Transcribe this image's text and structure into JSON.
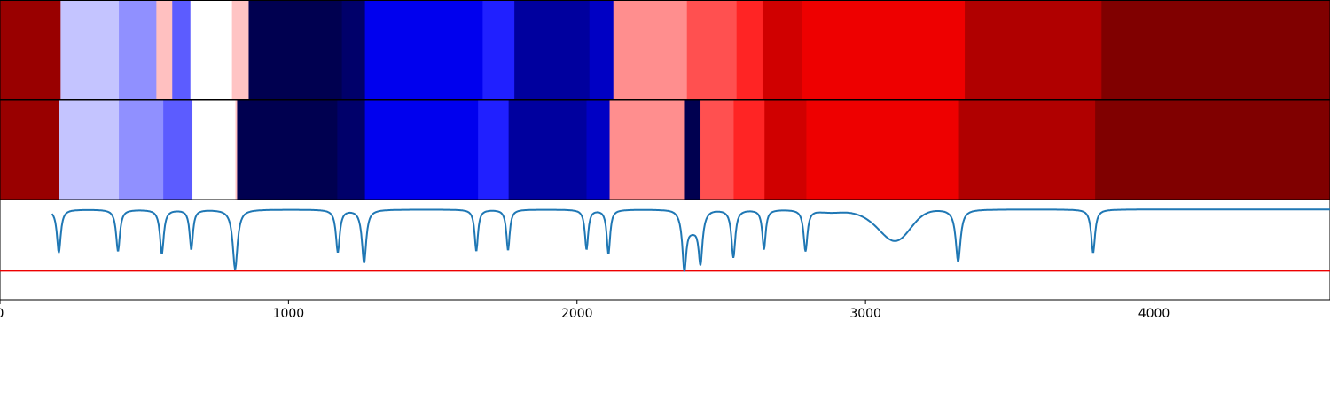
{
  "chart_data": {
    "type": "heatmap",
    "description_free": true,
    "x_range": [
      0,
      4610
    ],
    "xticks": [
      {
        "value": 0,
        "label": "0"
      },
      {
        "value": 1000,
        "label": "1000"
      },
      {
        "value": 2000,
        "label": "2000"
      },
      {
        "value": 3000,
        "label": "3000"
      },
      {
        "value": 4000,
        "label": "4000"
      }
    ],
    "rows": [
      {
        "name": "segments-top",
        "segments": [
          {
            "start": 0,
            "end": 210,
            "color": "#990000"
          },
          {
            "start": 210,
            "end": 412,
            "color": "#c4c4ff"
          },
          {
            "start": 412,
            "end": 542,
            "color": "#9090ff"
          },
          {
            "start": 542,
            "end": 597,
            "color": "#ffc0c0"
          },
          {
            "start": 597,
            "end": 660,
            "color": "#5c5cff"
          },
          {
            "start": 660,
            "end": 804,
            "color": "#ffffff"
          },
          {
            "start": 804,
            "end": 862,
            "color": "#ffc4c4"
          },
          {
            "start": 862,
            "end": 1185,
            "color": "#000050"
          },
          {
            "start": 1185,
            "end": 1265,
            "color": "#00006a"
          },
          {
            "start": 1265,
            "end": 1673,
            "color": "#0000ee"
          },
          {
            "start": 1673,
            "end": 1783,
            "color": "#2020ff"
          },
          {
            "start": 1783,
            "end": 2043,
            "color": "#00009e"
          },
          {
            "start": 2043,
            "end": 2126,
            "color": "#0000c4"
          },
          {
            "start": 2126,
            "end": 2381,
            "color": "#ff8e8e"
          },
          {
            "start": 2381,
            "end": 2553,
            "color": "#ff5050"
          },
          {
            "start": 2553,
            "end": 2643,
            "color": "#ff2424"
          },
          {
            "start": 2643,
            "end": 2781,
            "color": "#d00000"
          },
          {
            "start": 2781,
            "end": 3344,
            "color": "#ee0000"
          },
          {
            "start": 3344,
            "end": 3818,
            "color": "#b00000"
          },
          {
            "start": 3818,
            "end": 4610,
            "color": "#800000"
          }
        ]
      },
      {
        "name": "segments-bottom",
        "segments": [
          {
            "start": 0,
            "end": 204,
            "color": "#990000"
          },
          {
            "start": 204,
            "end": 412,
            "color": "#c4c4ff"
          },
          {
            "start": 412,
            "end": 566,
            "color": "#9090ff"
          },
          {
            "start": 566,
            "end": 667,
            "color": "#5c5cff"
          },
          {
            "start": 667,
            "end": 816,
            "color": "#ffffff"
          },
          {
            "start": 816,
            "end": 822,
            "color": "#ffc4c4"
          },
          {
            "start": 822,
            "end": 1169,
            "color": "#000050"
          },
          {
            "start": 1169,
            "end": 1265,
            "color": "#00006a"
          },
          {
            "start": 1265,
            "end": 1657,
            "color": "#0000ee"
          },
          {
            "start": 1657,
            "end": 1763,
            "color": "#2020ff"
          },
          {
            "start": 1763,
            "end": 2033,
            "color": "#00009e"
          },
          {
            "start": 2033,
            "end": 2113,
            "color": "#0000c4"
          },
          {
            "start": 2113,
            "end": 2371,
            "color": "#ff8e8e"
          },
          {
            "start": 2371,
            "end": 2428,
            "color": "#000050"
          },
          {
            "start": 2428,
            "end": 2543,
            "color": "#ff5050"
          },
          {
            "start": 2543,
            "end": 2650,
            "color": "#ff2424"
          },
          {
            "start": 2650,
            "end": 2795,
            "color": "#d00000"
          },
          {
            "start": 2795,
            "end": 3324,
            "color": "#ee0000"
          },
          {
            "start": 3324,
            "end": 3796,
            "color": "#b00000"
          },
          {
            "start": 3796,
            "end": 4610,
            "color": "#800000"
          }
        ]
      }
    ],
    "signal": {
      "baseline": 0,
      "y_range": [
        -1.0,
        0.1
      ],
      "threshold": -0.68,
      "threshold_color": "#ee0000",
      "line_color": "#1f77b4",
      "dips": [
        {
          "x": 204,
          "depth": 0.48,
          "width": 8
        },
        {
          "x": 409,
          "depth": 0.46,
          "width": 8
        },
        {
          "x": 561,
          "depth": 0.49,
          "width": 8
        },
        {
          "x": 663,
          "depth": 0.44,
          "width": 7
        },
        {
          "x": 815,
          "depth": 0.66,
          "width": 10
        },
        {
          "x": 1171,
          "depth": 0.47,
          "width": 8
        },
        {
          "x": 1262,
          "depth": 0.59,
          "width": 9
        },
        {
          "x": 1651,
          "depth": 0.46,
          "width": 7
        },
        {
          "x": 1761,
          "depth": 0.45,
          "width": 7
        },
        {
          "x": 2033,
          "depth": 0.44,
          "width": 7
        },
        {
          "x": 2109,
          "depth": 0.49,
          "width": 7
        },
        {
          "x": 2372,
          "depth": 0.57,
          "width": 8
        },
        {
          "x": 2428,
          "depth": 0.5,
          "width": 8
        },
        {
          "x": 2542,
          "depth": 0.53,
          "width": 8
        },
        {
          "x": 2648,
          "depth": 0.44,
          "width": 7
        },
        {
          "x": 2792,
          "depth": 0.46,
          "width": 8
        },
        {
          "x": 3321,
          "depth": 0.58,
          "width": 10
        },
        {
          "x": 3789,
          "depth": 0.48,
          "width": 8
        }
      ],
      "broad_features": [
        {
          "x": 2400,
          "depth": 0.2,
          "width": 35
        },
        {
          "x": 3110,
          "depth": 0.28,
          "width": 70
        },
        {
          "x": 3050,
          "depth": 0.1,
          "width": 90
        },
        {
          "x": 2880,
          "depth": 0.03,
          "width": 60
        }
      ]
    }
  }
}
